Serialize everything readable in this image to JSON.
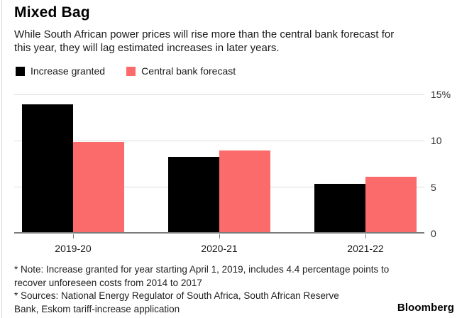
{
  "header": {
    "title": "Mixed Bag",
    "subtitle_lines": [
      "While South African power prices will rise more than the central bank forecast for",
      "this year, they will lag estimated increases in later years."
    ]
  },
  "chart_data": {
    "type": "bar",
    "categories": [
      "2019-20",
      "2020-21",
      "2021-22"
    ],
    "series": [
      {
        "name": "Increase granted",
        "color": "#000000",
        "values": [
          13.8,
          8.1,
          5.2
        ]
      },
      {
        "name": "Central bank forecast",
        "color": "#fb6b6b",
        "values": [
          9.7,
          8.8,
          6.0
        ]
      }
    ],
    "ylim": [
      0,
      15
    ],
    "yticks": {
      "values": [
        0,
        5,
        10,
        15
      ],
      "labels": [
        "0",
        "5",
        "10",
        "15%"
      ]
    },
    "annotation": {
      "text": "*",
      "applies_to": "2019-20"
    },
    "legend_position": "top-left",
    "grid": "horizontal",
    "title": "Mixed Bag",
    "xlabel": "",
    "ylabel": "%"
  },
  "footer": {
    "note_lines": [
      "* Note: Increase granted for year starting April 1, 2019, includes 4.4 percentage points to",
      "recover unforeseen costs from 2014 to 2017"
    ],
    "sources_lines": [
      "* Sources: National Energy Regulator of South Africa, South African Reserve",
      "Bank, Eskom tariff-increase application"
    ],
    "brand": "Bloomberg"
  }
}
